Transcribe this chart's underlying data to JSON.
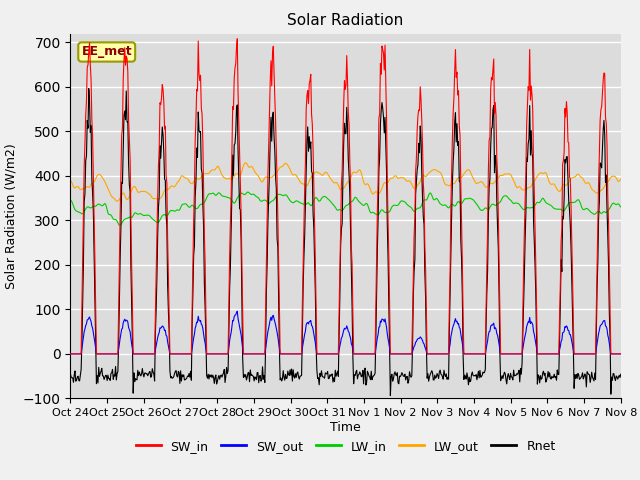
{
  "title": "Solar Radiation",
  "xlabel": "Time",
  "ylabel": "Solar Radiation (W/m2)",
  "ylim": [
    -100,
    720
  ],
  "n_days": 15,
  "x_tick_labels": [
    "Oct 24",
    "Oct 25",
    "Oct 26",
    "Oct 27",
    "Oct 28",
    "Oct 29",
    "Oct 30",
    "Oct 31",
    "Nov 1",
    "Nov 2",
    "Nov 3",
    "Nov 4",
    "Nov 5",
    "Nov 6",
    "Nov 7",
    "Nov 8"
  ],
  "annotation_text": "EE_met",
  "colors": {
    "SW_in": "#FF0000",
    "SW_out": "#0000FF",
    "LW_in": "#00CC00",
    "LW_out": "#FFA500",
    "Rnet": "#000000"
  },
  "legend_labels": [
    "SW_in",
    "SW_out",
    "LW_in",
    "LW_out",
    "Rnet"
  ],
  "plot_bg": "#DCDCDC",
  "fig_bg": "#F0F0F0",
  "sw_peaks": [
    680,
    675,
    590,
    650,
    660,
    665,
    640,
    615,
    690,
    560,
    645,
    635,
    625,
    550,
    630
  ],
  "sw_out_peaks": [
    95,
    90,
    72,
    92,
    105,
    98,
    90,
    68,
    92,
    42,
    88,
    78,
    88,
    72,
    88
  ],
  "lw_in_base": [
    330,
    305,
    310,
    345,
    355,
    350,
    340,
    335,
    325,
    340,
    340,
    335,
    335,
    330,
    325
  ],
  "lw_out_base": [
    385,
    360,
    365,
    400,
    410,
    405,
    395,
    390,
    380,
    395,
    395,
    390,
    390,
    385,
    380
  ],
  "night_rnet": -50,
  "title_fontsize": 11,
  "label_fontsize": 9,
  "tick_fontsize": 8,
  "legend_fontsize": 9
}
